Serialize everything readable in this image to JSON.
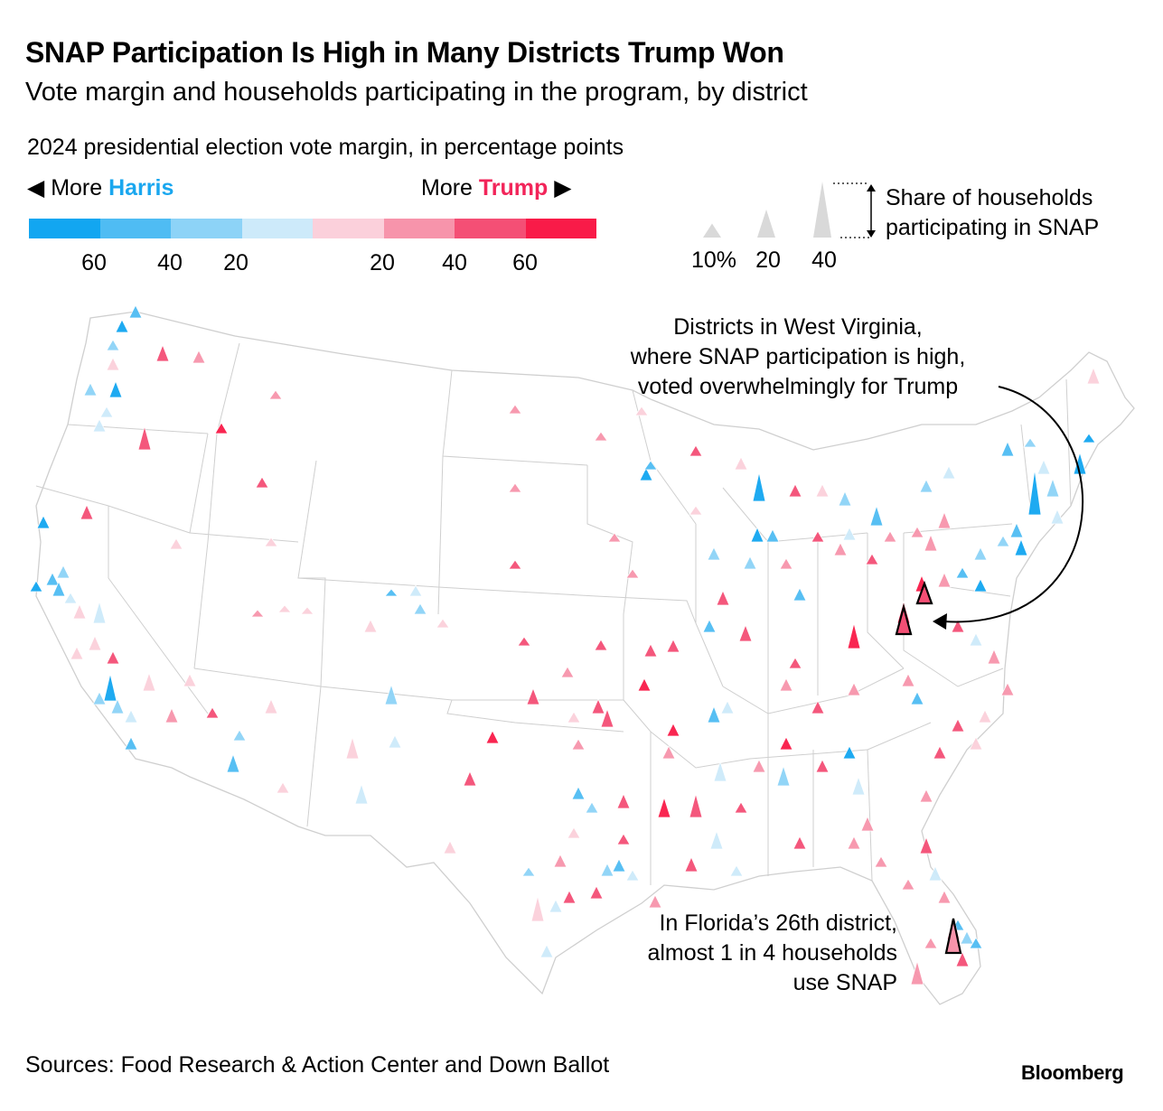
{
  "title": "SNAP Participation Is High in Many Districts Trump Won",
  "subtitle": "Vote margin and households participating in the program, by district",
  "legend": {
    "heading": "2024 presidential election vote margin, in percentage points",
    "more_left": "More ",
    "harris": "Harris",
    "arrow_left": "◀",
    "more_right": "More ",
    "trump": "Trump",
    "arrow_right": "▶",
    "colors": [
      "#12a6f1",
      "#4fbcf3",
      "#8dd3f7",
      "#cdeafa",
      "#fbd0db",
      "#f794ab",
      "#f44f75",
      "#f91b48"
    ],
    "ticks": [
      "60",
      "40",
      "20",
      "20",
      "40",
      "60"
    ],
    "size_labels": [
      "10%",
      "20",
      "40"
    ],
    "size_values": [
      10,
      20,
      40
    ],
    "size_color": "#d9d9d9",
    "snap_label_line1": "Share of households",
    "snap_label_line2": "participating in SNAP"
  },
  "annotations": {
    "wv_line1": "Districts in West Virginia,",
    "wv_line2": "where SNAP participation is high,",
    "wv_line3": "voted overwhelmingly for Trump",
    "fl_line1": "In Florida’s 26th district,",
    "fl_line2": "almost 1 in 4 households",
    "fl_line3": "use SNAP"
  },
  "source": "Sources: Food Research & Action Center and Down Ballot",
  "brand": "Bloomberg"
}
